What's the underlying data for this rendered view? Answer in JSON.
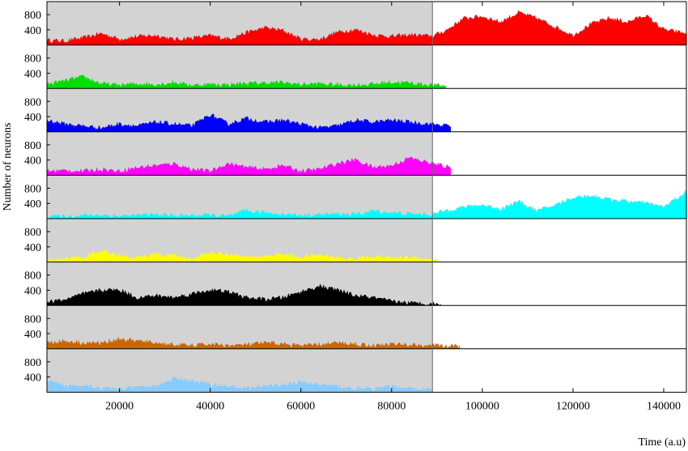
{
  "chart_data": {
    "type": "area",
    "xlabel": "Time (a.u)",
    "ylabel": "Number of neurons",
    "xlim": [
      4000,
      145000
    ],
    "ylim": [
      0,
      1100
    ],
    "x_ticks": [
      20000,
      40000,
      60000,
      80000,
      100000,
      120000,
      140000
    ],
    "y_ticks": [
      400,
      800
    ],
    "shaded_region": {
      "x": [
        4000,
        89000
      ],
      "color": "#d3d3d3"
    },
    "grid": false,
    "series": [
      {
        "color": "#ff0000",
        "end_x": 145000,
        "x": [
          4000,
          8000,
          12000,
          16000,
          20000,
          24000,
          28000,
          32000,
          36000,
          40000,
          44000,
          48000,
          52000,
          56000,
          60000,
          64000,
          68000,
          72000,
          76000,
          80000,
          84000,
          89000,
          92000,
          96000,
          100000,
          104000,
          108000,
          112000,
          116000,
          120000,
          124000,
          128000,
          132000,
          136000,
          140000,
          145000
        ],
        "y": [
          120,
          100,
          180,
          300,
          150,
          220,
          250,
          140,
          180,
          240,
          160,
          320,
          450,
          380,
          150,
          140,
          330,
          400,
          260,
          220,
          260,
          230,
          380,
          700,
          750,
          600,
          850,
          700,
          480,
          250,
          550,
          700,
          600,
          780,
          400,
          300
        ]
      },
      {
        "color": "#00dd00",
        "end_x": 92000,
        "x": [
          4000,
          8000,
          12000,
          16000,
          20000,
          24000,
          28000,
          32000,
          36000,
          40000,
          44000,
          48000,
          52000,
          56000,
          60000,
          64000,
          68000,
          72000,
          76000,
          80000,
          84000,
          89000,
          92000
        ],
        "y": [
          100,
          200,
          300,
          120,
          80,
          120,
          100,
          150,
          80,
          100,
          90,
          130,
          140,
          150,
          100,
          120,
          90,
          80,
          110,
          160,
          140,
          80,
          60
        ]
      },
      {
        "color": "#0000ff",
        "end_x": 93000,
        "x": [
          4000,
          8000,
          12000,
          16000,
          20000,
          24000,
          28000,
          32000,
          36000,
          40000,
          44000,
          48000,
          52000,
          56000,
          60000,
          64000,
          68000,
          72000,
          76000,
          80000,
          84000,
          89000,
          93000
        ],
        "y": [
          300,
          200,
          150,
          100,
          200,
          150,
          250,
          200,
          150,
          450,
          200,
          350,
          250,
          300,
          200,
          100,
          150,
          300,
          250,
          300,
          250,
          200,
          150
        ]
      },
      {
        "color": "#ff00ff",
        "end_x": 93000,
        "x": [
          4000,
          8000,
          12000,
          16000,
          20000,
          24000,
          28000,
          32000,
          36000,
          40000,
          44000,
          48000,
          52000,
          56000,
          60000,
          64000,
          68000,
          72000,
          76000,
          80000,
          84000,
          89000,
          93000
        ],
        "y": [
          100,
          120,
          100,
          150,
          100,
          200,
          250,
          300,
          150,
          100,
          300,
          200,
          150,
          250,
          100,
          150,
          300,
          400,
          200,
          250,
          450,
          300,
          200
        ]
      },
      {
        "color": "#00ffff",
        "end_x": 145000,
        "x": [
          4000,
          8000,
          12000,
          16000,
          20000,
          24000,
          28000,
          32000,
          36000,
          40000,
          44000,
          48000,
          52000,
          56000,
          60000,
          64000,
          68000,
          72000,
          76000,
          80000,
          84000,
          89000,
          92000,
          96000,
          100000,
          104000,
          108000,
          112000,
          116000,
          120000,
          124000,
          128000,
          132000,
          136000,
          140000,
          145000
        ],
        "y": [
          60,
          50,
          80,
          90,
          60,
          80,
          100,
          70,
          80,
          90,
          60,
          200,
          150,
          120,
          80,
          100,
          120,
          100,
          200,
          150,
          120,
          100,
          220,
          300,
          350,
          250,
          450,
          200,
          350,
          550,
          600,
          500,
          450,
          400,
          300,
          700
        ]
      },
      {
        "color": "#ffff00",
        "end_x": 90000,
        "x": [
          4000,
          8000,
          12000,
          16000,
          20000,
          24000,
          28000,
          32000,
          36000,
          40000,
          44000,
          48000,
          52000,
          56000,
          60000,
          64000,
          68000,
          72000,
          76000,
          80000,
          84000,
          90000
        ],
        "y": [
          40,
          80,
          120,
          300,
          150,
          100,
          200,
          150,
          80,
          250,
          200,
          120,
          150,
          200,
          120,
          180,
          100,
          80,
          150,
          100,
          120,
          60
        ]
      },
      {
        "color": "#000000",
        "end_x": 91000,
        "x": [
          4000,
          8000,
          12000,
          16000,
          20000,
          24000,
          28000,
          32000,
          36000,
          40000,
          44000,
          48000,
          52000,
          56000,
          60000,
          64000,
          68000,
          72000,
          76000,
          80000,
          84000,
          91000
        ],
        "y": [
          80,
          150,
          300,
          400,
          400,
          200,
          250,
          200,
          300,
          400,
          350,
          200,
          150,
          200,
          350,
          500,
          400,
          250,
          200,
          100,
          60,
          30
        ]
      },
      {
        "color": "#cc6600",
        "end_x": 95000,
        "x": [
          4000,
          8000,
          12000,
          16000,
          20000,
          24000,
          28000,
          32000,
          36000,
          40000,
          44000,
          48000,
          52000,
          56000,
          60000,
          64000,
          68000,
          72000,
          76000,
          80000,
          84000,
          89000,
          95000
        ],
        "y": [
          150,
          200,
          150,
          150,
          250,
          200,
          150,
          100,
          80,
          120,
          80,
          100,
          150,
          120,
          80,
          100,
          150,
          120,
          80,
          120,
          100,
          80,
          60
        ]
      },
      {
        "color": "#88ccff",
        "end_x": 89000,
        "x": [
          4000,
          8000,
          12000,
          16000,
          20000,
          24000,
          28000,
          32000,
          36000,
          40000,
          44000,
          48000,
          52000,
          56000,
          60000,
          64000,
          68000,
          72000,
          76000,
          80000,
          84000,
          89000
        ],
        "y": [
          300,
          150,
          200,
          100,
          80,
          120,
          150,
          350,
          300,
          200,
          150,
          100,
          150,
          200,
          250,
          200,
          150,
          100,
          80,
          150,
          100,
          60
        ]
      }
    ]
  }
}
